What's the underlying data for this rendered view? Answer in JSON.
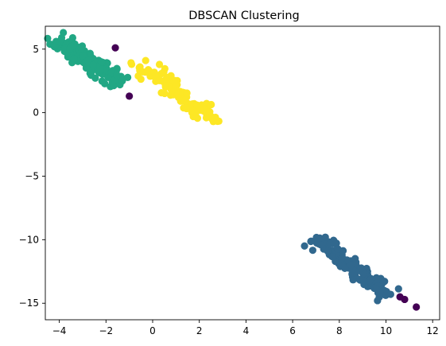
{
  "chart_data": {
    "type": "scatter",
    "title": "DBSCAN Clustering",
    "xlabel": "",
    "ylabel": "",
    "xlim": [
      -4.6,
      12.3
    ],
    "ylim": [
      -16.3,
      6.8
    ],
    "xticks": [
      -4,
      -2,
      0,
      2,
      4,
      6,
      8,
      10,
      12
    ],
    "yticks": [
      -15,
      -10,
      -5,
      0,
      5
    ],
    "grid": false,
    "legend": "none",
    "series": [
      {
        "color": "#440154",
        "cluster": -1,
        "points": [
          [
            -1.6,
            5.1
          ],
          [
            -1.0,
            1.3
          ],
          [
            10.6,
            -14.5
          ],
          [
            10.8,
            -14.7
          ],
          [
            11.3,
            -15.3
          ]
        ]
      },
      {
        "color": "#31688e",
        "cluster": 1,
        "center_line": [
          [
            7.1,
            -10.0
          ],
          [
            10.0,
            -14.3
          ]
        ],
        "spread": 0.28,
        "count": 150,
        "extra_points": [
          [
            7.2,
            -10.4
          ],
          [
            7.4,
            -9.8
          ],
          [
            7.6,
            -10.3
          ],
          [
            7.5,
            -10.9
          ],
          [
            10.2,
            -14.3
          ],
          [
            9.6,
            -13.9
          ]
        ]
      },
      {
        "color": "#21a784",
        "cluster": 0,
        "center_line": [
          [
            -4.0,
            5.7
          ],
          [
            -1.4,
            2.4
          ]
        ],
        "spread": 0.28,
        "count": 150,
        "extra_points": [
          [
            -4.0,
            5.6
          ],
          [
            -3.9,
            5.9
          ],
          [
            -1.4,
            2.2
          ],
          [
            -1.3,
            2.5
          ],
          [
            -2.2,
            4.0
          ],
          [
            -3.4,
            5.3
          ]
        ]
      },
      {
        "color": "#fde725",
        "cluster": 2,
        "center_line": [
          [
            -0.4,
            3.7
          ],
          [
            2.6,
            -0.7
          ]
        ],
        "spread": 0.28,
        "count": 110,
        "extra_points": [
          [
            -0.9,
            3.8
          ],
          [
            -0.3,
            4.1
          ],
          [
            2.6,
            -0.7
          ],
          [
            2.3,
            -0.4
          ],
          [
            1.2,
            0.9
          ],
          [
            1.9,
            0.6
          ]
        ]
      }
    ]
  }
}
